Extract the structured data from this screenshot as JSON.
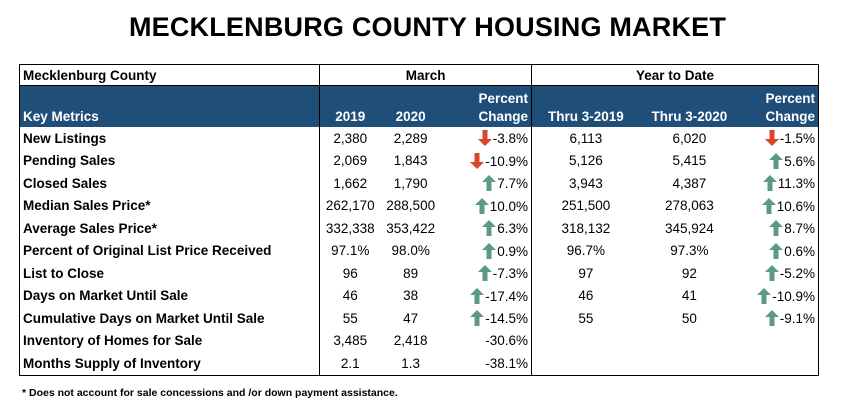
{
  "title": "MECKLENBURG COUNTY HOUSING MARKET",
  "header": {
    "region": "Mecklenburg County",
    "month_group": "March",
    "ytd_group": "Year to Date",
    "key_metrics": "Key Metrics",
    "col_2019": "2019",
    "col_2020": "2020",
    "pct_top": "Percent",
    "pct_bottom": "Change",
    "ytd_2019": "Thru 3-2019",
    "ytd_2020": "Thru 3-2020"
  },
  "colors": {
    "header_bg": "#1f4e79",
    "up_arrow": "#5b9b82",
    "down_arrow": "#d9472b"
  },
  "rows": [
    {
      "metric": "New Listings",
      "m2019": "2,380",
      "m2020": "2,289",
      "mchg": "-3.8%",
      "marrow": "down",
      "y2019": "6,113",
      "y2020": "6,020",
      "ychg": "-1.5%",
      "yarrow": "down"
    },
    {
      "metric": "Pending Sales",
      "m2019": "2,069",
      "m2020": "1,843",
      "mchg": "-10.9%",
      "marrow": "down",
      "y2019": "5,126",
      "y2020": "5,415",
      "ychg": "5.6%",
      "yarrow": "up"
    },
    {
      "metric": "Closed Sales",
      "m2019": "1,662",
      "m2020": "1,790",
      "mchg": "7.7%",
      "marrow": "up",
      "y2019": "3,943",
      "y2020": "4,387",
      "ychg": "11.3%",
      "yarrow": "up"
    },
    {
      "metric": "Median Sales Price*",
      "m2019": "262,170",
      "m2020": "288,500",
      "mchg": "10.0%",
      "marrow": "up",
      "y2019": "251,500",
      "y2020": "278,063",
      "ychg": "10.6%",
      "yarrow": "up"
    },
    {
      "metric": "Average Sales Price*",
      "m2019": "332,338",
      "m2020": "353,422",
      "mchg": "6.3%",
      "marrow": "up",
      "y2019": "318,132",
      "y2020": "345,924",
      "ychg": "8.7%",
      "yarrow": "up"
    },
    {
      "metric": "Percent of Original List Price Received",
      "m2019": "97.1%",
      "m2020": "98.0%",
      "mchg": "0.9%",
      "marrow": "up",
      "y2019": "96.7%",
      "y2020": "97.3%",
      "ychg": "0.6%",
      "yarrow": "up"
    },
    {
      "metric": "List to Close",
      "m2019": "96",
      "m2020": "89",
      "mchg": "-7.3%",
      "marrow": "up",
      "y2019": "97",
      "y2020": "92",
      "ychg": "-5.2%",
      "yarrow": "up"
    },
    {
      "metric": "Days on Market Until Sale",
      "m2019": "46",
      "m2020": "38",
      "mchg": "-17.4%",
      "marrow": "up",
      "y2019": "46",
      "y2020": "41",
      "ychg": "-10.9%",
      "yarrow": "up"
    },
    {
      "metric": "Cumulative Days on Market Until Sale",
      "m2019": "55",
      "m2020": "47",
      "mchg": "-14.5%",
      "marrow": "up",
      "y2019": "55",
      "y2020": "50",
      "ychg": "-9.1%",
      "yarrow": "up"
    },
    {
      "metric": "Inventory of Homes for Sale",
      "m2019": "3,485",
      "m2020": "2,418",
      "mchg": "-30.6%",
      "marrow": "",
      "y2019": "",
      "y2020": "",
      "ychg": "",
      "yarrow": ""
    },
    {
      "metric": "Months Supply of Inventory",
      "m2019": "2.1",
      "m2020": "1.3",
      "mchg": "-38.1%",
      "marrow": "",
      "y2019": "",
      "y2020": "",
      "ychg": "",
      "yarrow": ""
    }
  ],
  "footnote": "* Does not account for sale concessions and /or down payment assistance."
}
